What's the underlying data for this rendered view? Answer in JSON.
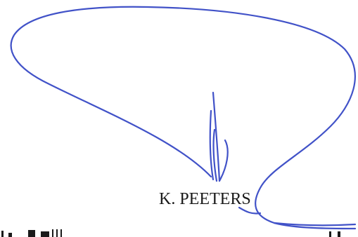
{
  "signature": {
    "signatory_name": "K. PEETERS",
    "ink_color": "#4152c8",
    "text_color": "#1a1a1a"
  }
}
